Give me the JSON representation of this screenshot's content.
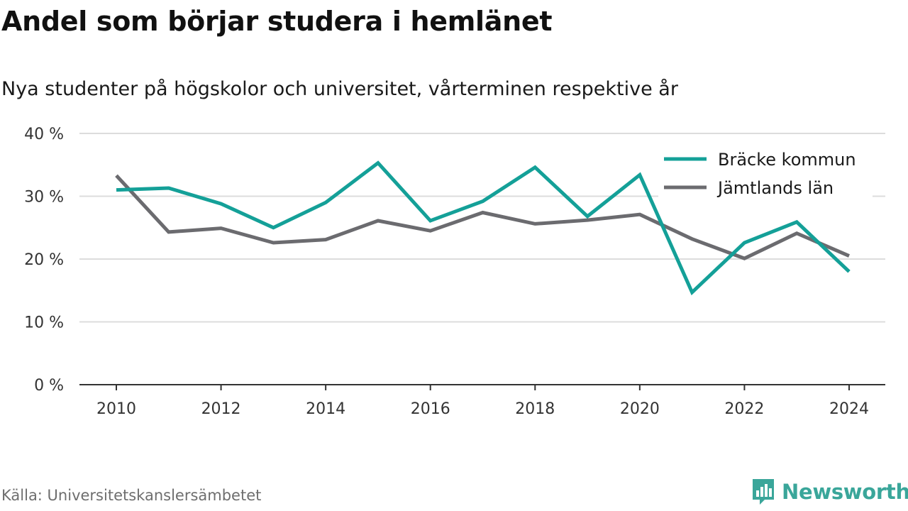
{
  "title": "Andel som börjar studera i hemlänet",
  "subtitle": "Nya studenter på högskolor och universitet, vårterminen respektive år",
  "source": "Källa: Universitetskanslersämbetet",
  "brand": "Newsworthy",
  "colors": {
    "series1": "#14a098",
    "series2": "#6b6b6f",
    "grid": "#dcdcdc",
    "axis": "#333333",
    "brand": "#3aa69a"
  },
  "chart_data": {
    "type": "line",
    "x": [
      2010,
      2011,
      2012,
      2013,
      2014,
      2015,
      2016,
      2017,
      2018,
      2019,
      2020,
      2021,
      2022,
      2023,
      2024
    ],
    "xticks": [
      "2010",
      "2012",
      "2014",
      "2016",
      "2018",
      "2020",
      "2022",
      "2024"
    ],
    "yticks": [
      "0 %",
      "10 %",
      "20 %",
      "30 %",
      "40 %"
    ],
    "ylim": [
      0,
      40
    ],
    "grid": true,
    "legend_position": "top-right",
    "series": [
      {
        "name": "Bräcke kommun",
        "values": [
          31.0,
          31.3,
          28.8,
          25.0,
          29.0,
          35.3,
          26.1,
          29.2,
          34.6,
          26.8,
          33.4,
          14.7,
          22.6,
          25.9,
          18.0
        ]
      },
      {
        "name": "Jämtlands län",
        "values": [
          33.3,
          24.3,
          24.9,
          22.6,
          23.1,
          26.1,
          24.5,
          27.4,
          25.6,
          26.2,
          27.1,
          23.2,
          20.1,
          24.1,
          20.5
        ]
      }
    ]
  }
}
